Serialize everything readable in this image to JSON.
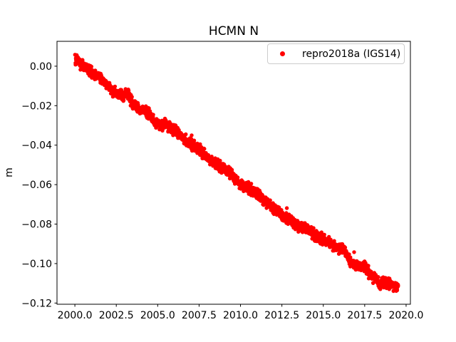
{
  "figure": {
    "title": "HCMN N",
    "ylabel": "m"
  },
  "legend": {
    "label": "repro2018a (IGS14)",
    "marker_color": "#ff0000",
    "position": "upper right"
  },
  "colors": {
    "background": "#ffffff",
    "axis": "#000000",
    "series": "#ff0000",
    "legend_border": "#cccccc"
  },
  "chart_data": {
    "type": "scatter",
    "title": "HCMN N",
    "xlabel": "",
    "ylabel": "m",
    "grid": false,
    "legend_position": "upper right",
    "series_name": "repro2018a (IGS14)",
    "color": "#ff0000",
    "marker": "dot",
    "marker_radius_px": 2.7,
    "xlim": [
      1998.92,
      2020.26
    ],
    "ylim": [
      -0.1206,
      0.0126
    ],
    "xticks": {
      "values": [
        2000.0,
        2002.5,
        2005.0,
        2007.5,
        2010.0,
        2012.5,
        2015.0,
        2017.5,
        2020.0
      ],
      "labels": [
        "2000.0",
        "2002.5",
        "2005.0",
        "2007.5",
        "2010.0",
        "2012.5",
        "2015.0",
        "2017.5",
        "2020.0"
      ]
    },
    "yticks": {
      "values": [
        0.0,
        -0.02,
        -0.04,
        -0.06,
        -0.08,
        -0.1,
        -0.12
      ],
      "labels": [
        "0.00",
        "−0.02",
        "−0.04",
        "−0.06",
        "−0.08",
        "−0.10",
        "−0.12"
      ]
    },
    "x_start": 2000.02,
    "x_end": 2019.52,
    "n_points": 2000,
    "noise_sd_m": 0.0013,
    "noise_clip_m": 0.003,
    "seed": 7,
    "trend_anchors": [
      [
        2000.02,
        0.0028
      ],
      [
        2000.15,
        0.0032
      ],
      [
        2000.3,
        0.0012
      ],
      [
        2000.5,
        0.0002
      ],
      [
        2000.7,
        -0.0012
      ],
      [
        2000.9,
        -0.0022
      ],
      [
        2001.1,
        -0.0042
      ],
      [
        2001.4,
        -0.0049
      ],
      [
        2001.7,
        -0.0065
      ],
      [
        2002.0,
        -0.0105
      ],
      [
        2002.3,
        -0.0125
      ],
      [
        2002.6,
        -0.014
      ],
      [
        2002.9,
        -0.0148
      ],
      [
        2003.15,
        -0.0132
      ],
      [
        2003.5,
        -0.0195
      ],
      [
        2003.8,
        -0.021
      ],
      [
        2004.1,
        -0.0222
      ],
      [
        2004.5,
        -0.0245
      ],
      [
        2004.8,
        -0.028
      ],
      [
        2005.1,
        -0.0299
      ],
      [
        2005.45,
        -0.0295
      ],
      [
        2005.8,
        -0.0318
      ],
      [
        2006.1,
        -0.0322
      ],
      [
        2006.5,
        -0.0361
      ],
      [
        2006.8,
        -0.0385
      ],
      [
        2007.1,
        -0.0402
      ],
      [
        2007.5,
        -0.042
      ],
      [
        2008.0,
        -0.0462
      ],
      [
        2008.5,
        -0.0496
      ],
      [
        2009.0,
        -0.0516
      ],
      [
        2009.5,
        -0.0556
      ],
      [
        2010.0,
        -0.0606
      ],
      [
        2010.5,
        -0.0617
      ],
      [
        2011.0,
        -0.0643
      ],
      [
        2011.5,
        -0.0682
      ],
      [
        2011.85,
        -0.0715
      ],
      [
        2012.2,
        -0.0728
      ],
      [
        2012.55,
        -0.0762
      ],
      [
        2013.0,
        -0.0781
      ],
      [
        2013.5,
        -0.0809
      ],
      [
        2014.0,
        -0.0822
      ],
      [
        2014.5,
        -0.0856
      ],
      [
        2015.0,
        -0.0876
      ],
      [
        2015.5,
        -0.0903
      ],
      [
        2016.0,
        -0.0931
      ],
      [
        2016.3,
        -0.0932
      ],
      [
        2016.65,
        -0.1001
      ],
      [
        2017.1,
        -0.1006
      ],
      [
        2017.5,
        -0.1019
      ],
      [
        2017.9,
        -0.1062
      ],
      [
        2018.2,
        -0.1082
      ],
      [
        2018.45,
        -0.1108
      ],
      [
        2018.75,
        -0.1092
      ],
      [
        2019.0,
        -0.1103
      ],
      [
        2019.25,
        -0.1118
      ],
      [
        2019.52,
        -0.1113
      ]
    ],
    "outliers": [
      [
        2006.7,
        -0.0345
      ],
      [
        2007.05,
        -0.035
      ],
      [
        2012.8,
        -0.0719
      ],
      [
        2016.86,
        -0.0942
      ],
      [
        2017.72,
        -0.1011
      ]
    ]
  }
}
